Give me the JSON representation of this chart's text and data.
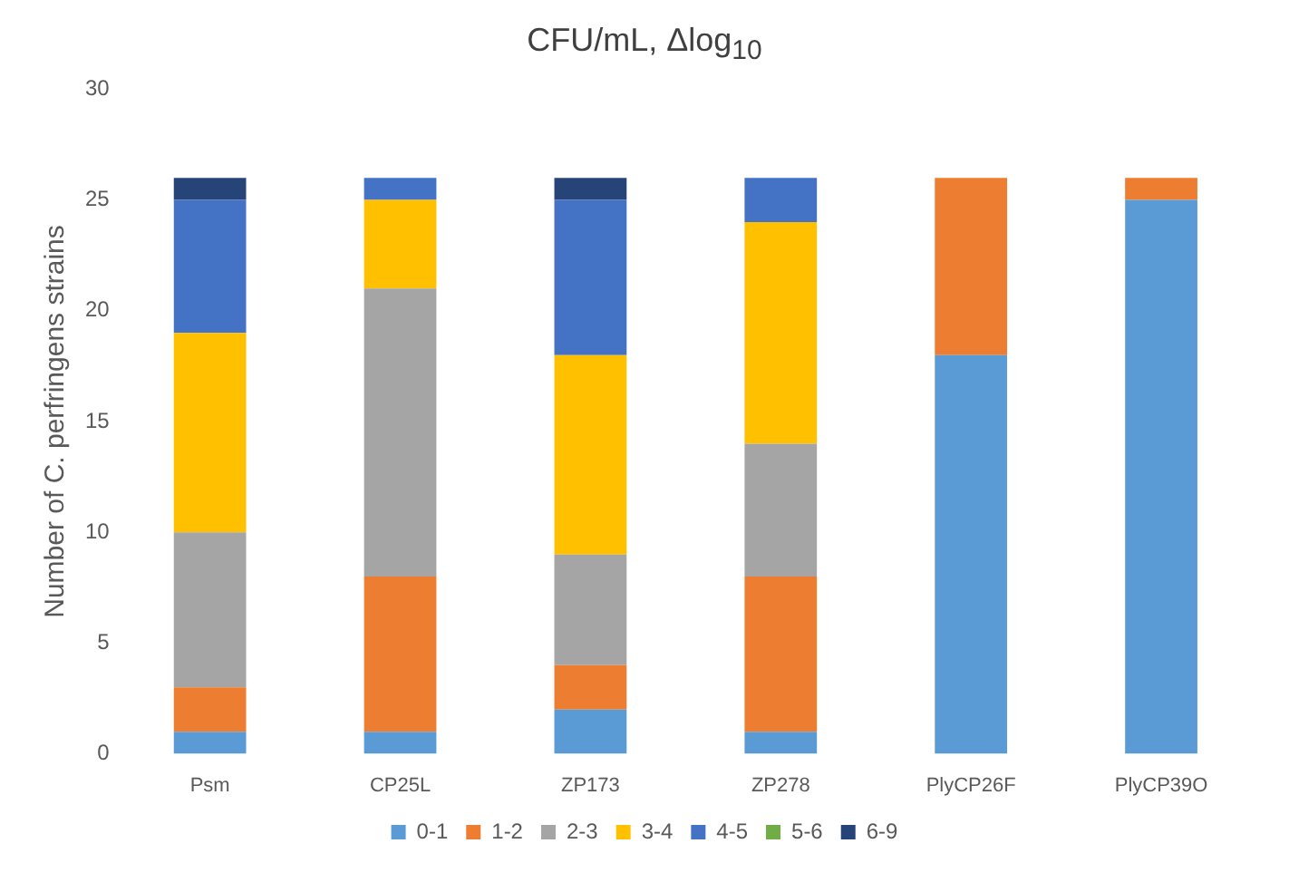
{
  "chart_data": {
    "type": "bar",
    "title": "CFU/mL, Δlog$_{10}$",
    "ylabel": "Number of C. perfringens strains",
    "categories": [
      "Psm",
      "CP25L",
      "ZP173",
      "ZP278",
      "PlyCP26F",
      "PlyCP39O"
    ],
    "stacked": true,
    "ylim": [
      0,
      30
    ],
    "yticks": [
      0,
      5,
      10,
      15,
      20,
      25,
      30
    ],
    "grid": false,
    "legend": "bottom",
    "series": [
      {
        "name": "0-1",
        "color": "#5b9bd5",
        "values": [
          1,
          1,
          2,
          1,
          18,
          25
        ]
      },
      {
        "name": "1-2",
        "color": "#ed7d31",
        "values": [
          2,
          7,
          2,
          7,
          8,
          1
        ]
      },
      {
        "name": "2-3",
        "color": "#a5a5a5",
        "values": [
          7,
          13,
          5,
          6,
          0,
          0
        ]
      },
      {
        "name": "3-4",
        "color": "#ffc000",
        "values": [
          9,
          4,
          9,
          10,
          0,
          0
        ]
      },
      {
        "name": "4-5",
        "color": "#4472c4",
        "values": [
          6,
          1,
          7,
          2,
          0,
          0
        ]
      },
      {
        "name": "5-6",
        "color": "#70ad47",
        "values": [
          0,
          0,
          0,
          0,
          0,
          0
        ]
      },
      {
        "name": "6-9",
        "color": "#264478",
        "values": [
          1,
          0,
          1,
          0,
          0,
          0
        ]
      }
    ]
  }
}
